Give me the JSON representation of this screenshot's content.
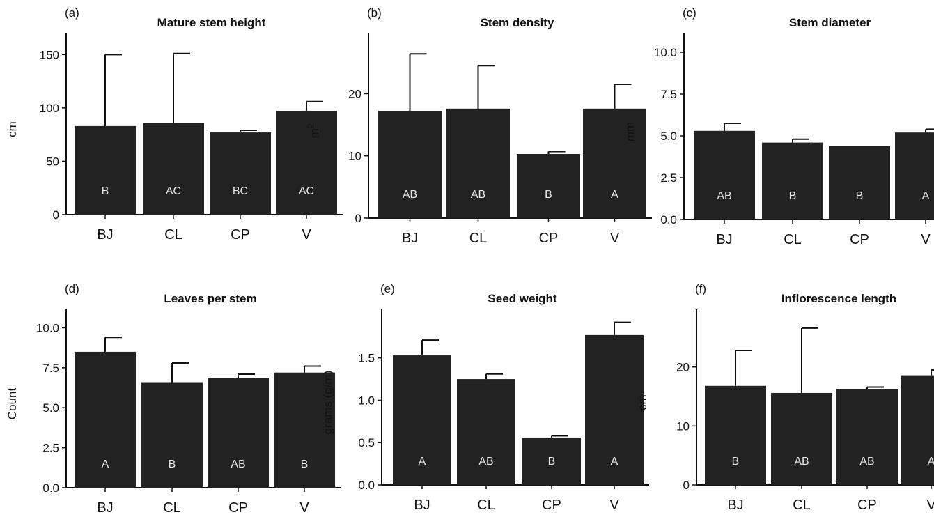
{
  "chart_data": [
    {
      "panel": "(a)",
      "type": "bar",
      "title": "Mature stem height",
      "xlabel": "",
      "ylabel": "cm",
      "categories": [
        "BJ",
        "CL",
        "CP",
        "V"
      ],
      "values": [
        83,
        86,
        77,
        97
      ],
      "error_upper": [
        150,
        151,
        79,
        106
      ],
      "group_letters": [
        "B",
        "AC",
        "BC",
        "AC"
      ],
      "ylim": [
        0,
        160
      ],
      "yticks": [
        0,
        50,
        100,
        150
      ],
      "ytick_labels": [
        "0",
        "50",
        "100",
        "150"
      ],
      "bar_color": "#222222"
    },
    {
      "panel": "(b)",
      "type": "bar",
      "title": "Stem density",
      "xlabel": "",
      "ylabel": "m2",
      "categories": [
        "BJ",
        "CL",
        "CP",
        "V"
      ],
      "values": [
        17.2,
        17.6,
        10.3,
        17.6
      ],
      "error_upper": [
        26.4,
        24.5,
        10.7,
        21.5
      ],
      "group_letters": [
        "AB",
        "AB",
        "B",
        "A"
      ],
      "ylim": [
        0,
        28
      ],
      "yticks": [
        0,
        10,
        20
      ],
      "ytick_labels": [
        "0",
        "10",
        "20"
      ],
      "bar_color": "#222222"
    },
    {
      "panel": "(c)",
      "type": "bar",
      "title": "Stem diameter",
      "xlabel": "",
      "ylabel": "mm",
      "categories": [
        "BJ",
        "CL",
        "CP",
        "V"
      ],
      "values": [
        5.3,
        4.6,
        4.4,
        5.2
      ],
      "error_upper": [
        5.75,
        4.8,
        4.4,
        5.4
      ],
      "group_letters": [
        "AB",
        "B",
        "B",
        "A"
      ],
      "ylim": [
        0,
        10.5
      ],
      "yticks": [
        0,
        2.5,
        5,
        7.5,
        10
      ],
      "ytick_labels": [
        "0.0",
        "2.5",
        "5.0",
        "7.5",
        "10.0"
      ],
      "bar_color": "#222222"
    },
    {
      "panel": "(d)",
      "type": "bar",
      "title": "Leaves per stem",
      "xlabel": "",
      "ylabel": "Count",
      "categories": [
        "BJ",
        "CL",
        "CP",
        "V"
      ],
      "values": [
        8.5,
        6.6,
        6.85,
        7.2
      ],
      "error_upper": [
        9.4,
        7.8,
        7.1,
        7.6
      ],
      "group_letters": [
        "A",
        "B",
        "AB",
        "B"
      ],
      "ylim": [
        0,
        10.5
      ],
      "yticks": [
        0,
        2.5,
        5,
        7.5,
        10
      ],
      "ytick_labels": [
        "0.0",
        "2.5",
        "5.0",
        "7.5",
        "10.0"
      ],
      "bar_color": "#222222"
    },
    {
      "panel": "(e)",
      "type": "bar",
      "title": "Seed weight",
      "xlabel": "",
      "ylabel": "grams (g/m)",
      "categories": [
        "BJ",
        "CL",
        "CP",
        "V"
      ],
      "values": [
        1.53,
        1.25,
        0.56,
        1.77
      ],
      "error_upper": [
        1.71,
        1.31,
        0.58,
        1.92
      ],
      "group_letters": [
        "A",
        "AB",
        "B",
        "A"
      ],
      "ylim": [
        0,
        1.95
      ],
      "yticks": [
        0,
        0.5,
        1,
        1.5
      ],
      "ytick_labels": [
        "0.0",
        "0.5",
        "1.0",
        "1.5"
      ],
      "bar_color": "#222222"
    },
    {
      "panel": "(f)",
      "type": "bar",
      "title": "Inflorescence length",
      "xlabel": "",
      "ylabel": "cm",
      "categories": [
        "BJ",
        "CL",
        "CP",
        "V"
      ],
      "values": [
        16.8,
        15.6,
        16.2,
        18.6
      ],
      "error_upper": [
        22.8,
        26.6,
        16.6,
        19.5
      ],
      "group_letters": [
        "B",
        "AB",
        "AB",
        "A"
      ],
      "ylim": [
        0,
        28
      ],
      "yticks": [
        0,
        10,
        20
      ],
      "ytick_labels": [
        "0",
        "10",
        "20"
      ],
      "bar_color": "#222222"
    }
  ]
}
